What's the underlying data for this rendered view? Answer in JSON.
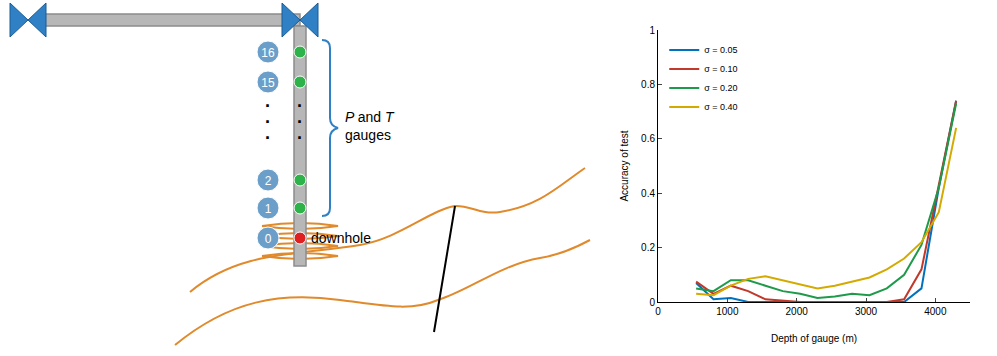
{
  "diagram": {
    "gauges": [
      {
        "label": "16",
        "kind": "gauge"
      },
      {
        "label": "15",
        "kind": "gauge"
      },
      {
        "label": "2",
        "kind": "gauge"
      },
      {
        "label": "1",
        "kind": "gauge"
      },
      {
        "label": "0",
        "kind": "downhole"
      }
    ],
    "ellipsis": "·",
    "bracket_label": [
      "P and T",
      "gauges"
    ],
    "downhole_label": "downhole"
  },
  "chart_data": {
    "type": "line",
    "x_label": "Depth of gauge (m)",
    "y_label": "Accuracy of test",
    "x": [
      550,
      800,
      1050,
      1300,
      1550,
      1800,
      2050,
      2300,
      2550,
      2800,
      3050,
      3300,
      3550,
      3800,
      4050,
      4300
    ],
    "series": [
      {
        "name": "σ = 0.05",
        "color": "#0072bd",
        "values": [
          0.07,
          0.01,
          0.015,
          0.0,
          0.0,
          0.0,
          0.0,
          0.0,
          0.0,
          0.0,
          0.0,
          0.0,
          0.0,
          0.05,
          0.42,
          0.74
        ]
      },
      {
        "name": "σ = 0.10",
        "color": "#c0392b",
        "values": [
          0.075,
          0.03,
          0.06,
          0.04,
          0.01,
          0.005,
          0.0,
          0.0,
          0.0,
          0.0,
          0.0,
          0.0,
          0.01,
          0.12,
          0.43,
          0.74
        ]
      },
      {
        "name": "σ = 0.20",
        "color": "#1e9a4a",
        "values": [
          0.05,
          0.04,
          0.08,
          0.08,
          0.06,
          0.04,
          0.03,
          0.015,
          0.02,
          0.03,
          0.025,
          0.05,
          0.1,
          0.21,
          0.42,
          0.73
        ]
      },
      {
        "name": "σ = 0.40",
        "color": "#d4aa00",
        "values": [
          0.03,
          0.025,
          0.06,
          0.085,
          0.095,
          0.08,
          0.065,
          0.05,
          0.06,
          0.075,
          0.09,
          0.12,
          0.16,
          0.22,
          0.33,
          0.64
        ]
      }
    ],
    "xlim": [
      0,
      4500
    ],
    "xticks": [
      0,
      1000,
      2000,
      3000,
      4000
    ],
    "ylim": [
      0,
      1
    ],
    "yticks": [
      0,
      0.2,
      0.4,
      0.6,
      0.8,
      1
    ],
    "legend": "top-left",
    "grid": false
  }
}
